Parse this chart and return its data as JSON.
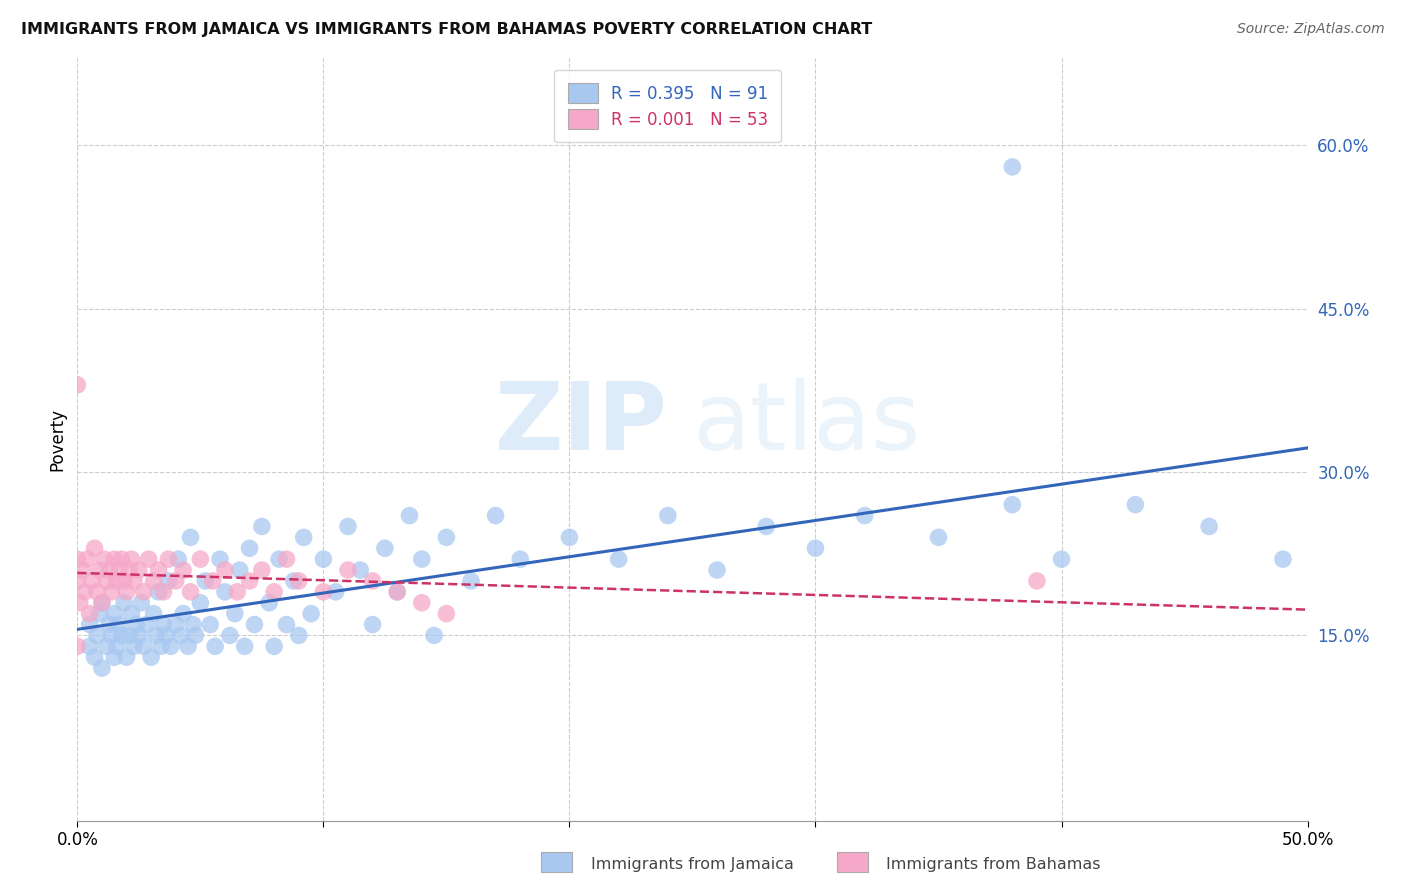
{
  "title": "IMMIGRANTS FROM JAMAICA VS IMMIGRANTS FROM BAHAMAS POVERTY CORRELATION CHART",
  "source": "Source: ZipAtlas.com",
  "ylabel": "Poverty",
  "xlim": [
    0.0,
    0.5
  ],
  "ylim": [
    -0.02,
    0.68
  ],
  "y_ticks_right": [
    0.15,
    0.3,
    0.45,
    0.6
  ],
  "y_tick_labels_right": [
    "15.0%",
    "30.0%",
    "45.0%",
    "60.0%"
  ],
  "jamaica_color": "#a8c8f0",
  "bahamas_color": "#f5a8c8",
  "jamaica_line_color": "#3366bb",
  "bahamas_line_color": "#cc3366",
  "jamaica_R": 0.395,
  "jamaica_N": 91,
  "bahamas_R": 0.001,
  "bahamas_N": 53,
  "legend_label_jamaica": "Immigrants from Jamaica",
  "legend_label_bahamas": "Immigrants from Bahamas",
  "watermark_zip": "ZIP",
  "watermark_atlas": "atlas",
  "background_color": "#ffffff",
  "grid_color": "#cccccc",
  "jamaica_x": [
    0.005,
    0.005,
    0.007,
    0.008,
    0.009,
    0.01,
    0.01,
    0.012,
    0.013,
    0.014,
    0.015,
    0.015,
    0.016,
    0.017,
    0.018,
    0.019,
    0.02,
    0.021,
    0.022,
    0.023,
    0.024,
    0.025,
    0.026,
    0.027,
    0.028,
    0.03,
    0.031,
    0.032,
    0.033,
    0.034,
    0.035,
    0.036,
    0.037,
    0.038,
    0.04,
    0.041,
    0.042,
    0.043,
    0.045,
    0.046,
    0.047,
    0.048,
    0.05,
    0.052,
    0.054,
    0.056,
    0.058,
    0.06,
    0.062,
    0.064,
    0.066,
    0.068,
    0.07,
    0.072,
    0.075,
    0.078,
    0.08,
    0.082,
    0.085,
    0.088,
    0.09,
    0.092,
    0.095,
    0.1,
    0.105,
    0.11,
    0.115,
    0.12,
    0.125,
    0.13,
    0.135,
    0.14,
    0.145,
    0.15,
    0.16,
    0.17,
    0.18,
    0.2,
    0.22,
    0.24,
    0.26,
    0.28,
    0.3,
    0.32,
    0.35,
    0.38,
    0.4,
    0.43,
    0.46,
    0.49,
    0.38
  ],
  "jamaica_y": [
    0.14,
    0.16,
    0.13,
    0.15,
    0.17,
    0.12,
    0.18,
    0.14,
    0.16,
    0.15,
    0.13,
    0.17,
    0.14,
    0.16,
    0.15,
    0.18,
    0.13,
    0.15,
    0.17,
    0.14,
    0.16,
    0.15,
    0.18,
    0.14,
    0.16,
    0.13,
    0.17,
    0.15,
    0.19,
    0.14,
    0.16,
    0.15,
    0.2,
    0.14,
    0.16,
    0.22,
    0.15,
    0.17,
    0.14,
    0.24,
    0.16,
    0.15,
    0.18,
    0.2,
    0.16,
    0.14,
    0.22,
    0.19,
    0.15,
    0.17,
    0.21,
    0.14,
    0.23,
    0.16,
    0.25,
    0.18,
    0.14,
    0.22,
    0.16,
    0.2,
    0.15,
    0.24,
    0.17,
    0.22,
    0.19,
    0.25,
    0.21,
    0.16,
    0.23,
    0.19,
    0.26,
    0.22,
    0.15,
    0.24,
    0.2,
    0.26,
    0.22,
    0.24,
    0.22,
    0.26,
    0.21,
    0.25,
    0.23,
    0.26,
    0.24,
    0.27,
    0.22,
    0.27,
    0.25,
    0.22,
    0.58
  ],
  "bahamas_x": [
    0.0,
    0.0,
    0.0,
    0.001,
    0.002,
    0.003,
    0.004,
    0.005,
    0.006,
    0.007,
    0.008,
    0.009,
    0.01,
    0.011,
    0.012,
    0.013,
    0.014,
    0.015,
    0.016,
    0.017,
    0.018,
    0.019,
    0.02,
    0.021,
    0.022,
    0.023,
    0.025,
    0.027,
    0.029,
    0.031,
    0.033,
    0.035,
    0.037,
    0.04,
    0.043,
    0.046,
    0.05,
    0.055,
    0.06,
    0.065,
    0.07,
    0.075,
    0.08,
    0.085,
    0.09,
    0.1,
    0.11,
    0.12,
    0.13,
    0.14,
    0.15,
    0.39,
    0.0
  ],
  "bahamas_y": [
    0.2,
    0.22,
    0.14,
    0.18,
    0.21,
    0.19,
    0.22,
    0.17,
    0.2,
    0.23,
    0.19,
    0.21,
    0.18,
    0.22,
    0.2,
    0.21,
    0.19,
    0.22,
    0.2,
    0.21,
    0.22,
    0.2,
    0.19,
    0.21,
    0.22,
    0.2,
    0.21,
    0.19,
    0.22,
    0.2,
    0.21,
    0.19,
    0.22,
    0.2,
    0.21,
    0.19,
    0.22,
    0.2,
    0.21,
    0.19,
    0.2,
    0.21,
    0.19,
    0.22,
    0.2,
    0.19,
    0.21,
    0.2,
    0.19,
    0.18,
    0.17,
    0.2,
    0.38
  ]
}
